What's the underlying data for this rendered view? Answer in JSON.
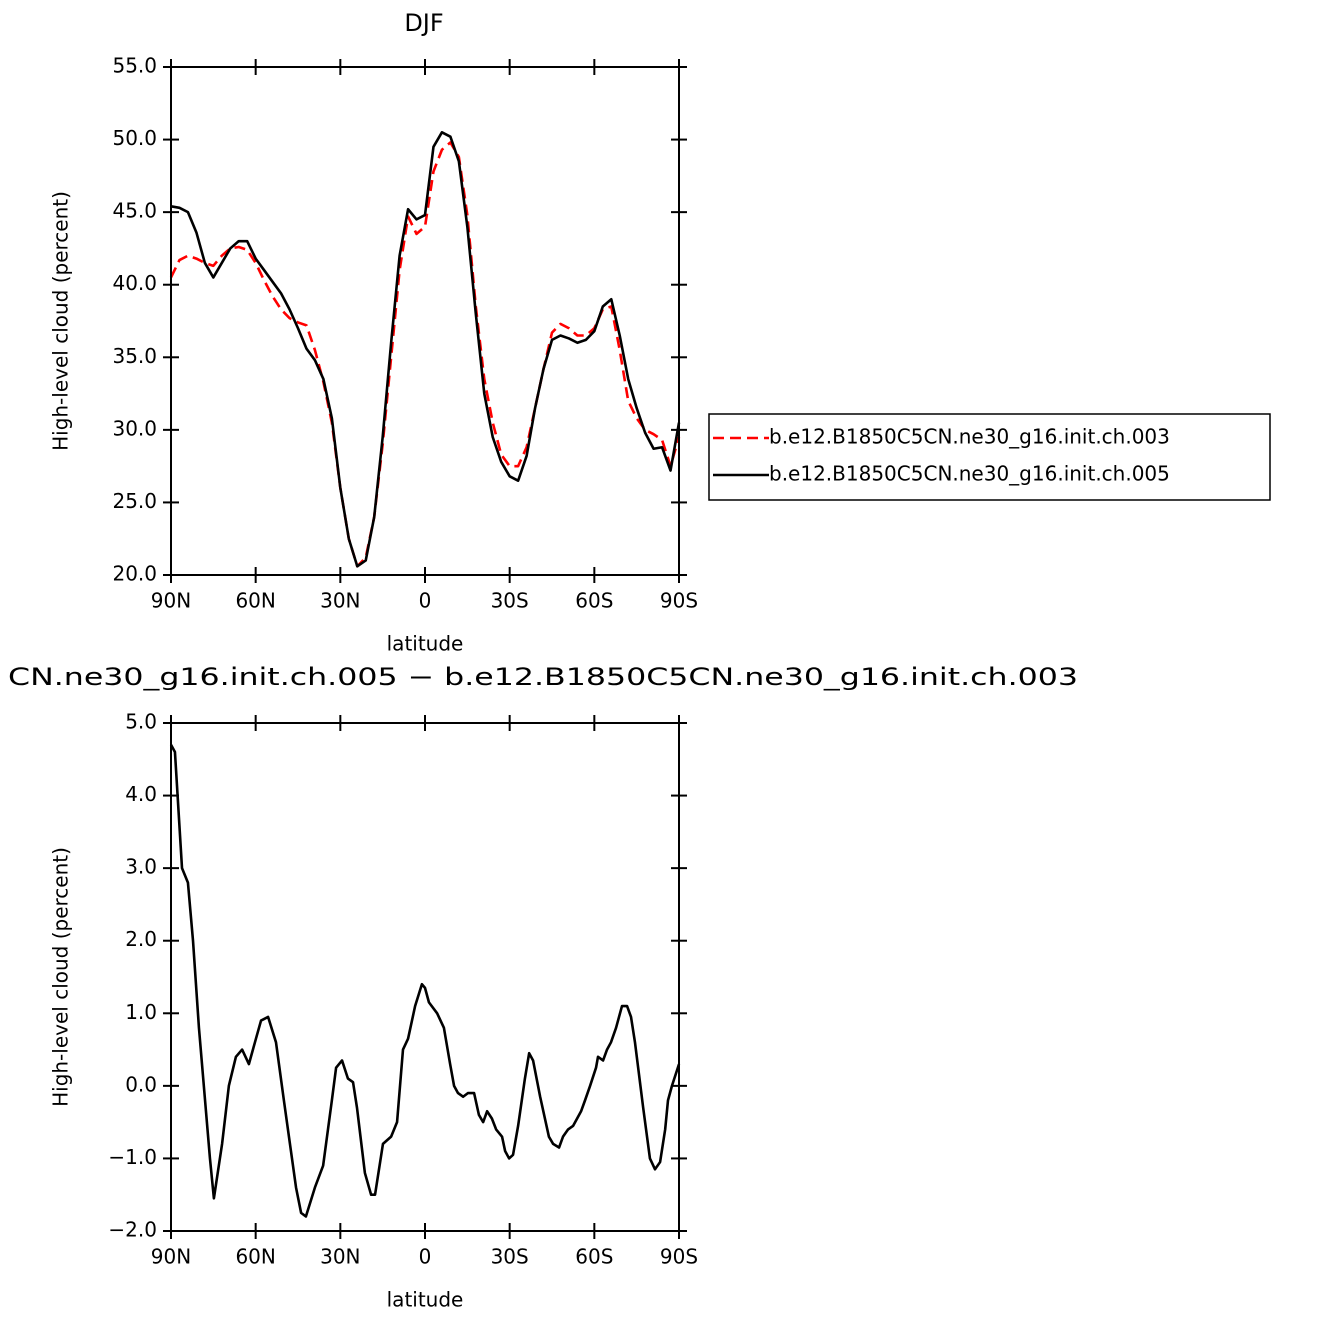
{
  "chart_data": [
    {
      "type": "line",
      "title": "DJF",
      "x_label": "latitude",
      "y_label": "High-level cloud (percent)",
      "x": [
        90,
        87,
        84,
        81,
        78,
        75,
        72,
        69,
        66,
        63,
        60,
        57,
        54,
        51,
        48,
        45,
        42,
        39,
        36,
        33,
        30,
        27,
        24,
        21,
        18,
        15,
        12,
        9,
        6,
        3,
        0,
        -3,
        -6,
        -9,
        -12,
        -15,
        -18,
        -21,
        -24,
        -27,
        -30,
        -33,
        -36,
        -39,
        -42,
        -45,
        -48,
        -51,
        -54,
        -57,
        -60,
        -63,
        -66,
        -69,
        -72,
        -75,
        -78,
        -81,
        -84,
        -87,
        -90
      ],
      "series": [
        {
          "name": "b.e12.B1850C5CN.ne30_g16.init.ch.003",
          "color": "#ff0000",
          "line_style": "dashed",
          "values": [
            40.5,
            41.7,
            42.0,
            41.8,
            41.5,
            41.3,
            42.0,
            42.5,
            42.6,
            42.4,
            41.5,
            40.3,
            39.2,
            38.3,
            37.7,
            37.4,
            37.2,
            35.5,
            33.3,
            30.5,
            26,
            22.5,
            20.6,
            21.2,
            24,
            29,
            35,
            41,
            44.7,
            43.5,
            44,
            47.8,
            49.3,
            49.8,
            48.8,
            44.8,
            38.5,
            33.5,
            30.5,
            28.3,
            27.5,
            27.5,
            28.8,
            31.5,
            34.2,
            36.7,
            37.3,
            37.0,
            36.5,
            36.5,
            37.0,
            38.3,
            38.5,
            35.5,
            32.0,
            30.8,
            30.0,
            29.7,
            29.3,
            27.5,
            29.5
          ]
        },
        {
          "name": "b.e12.B1850C5CN.ne30_g16.init.ch.005",
          "color": "#000000",
          "line_style": "solid",
          "values": [
            45.4,
            45.3,
            45.0,
            43.6,
            41.5,
            40.5,
            41.5,
            42.5,
            43.0,
            43.0,
            41.8,
            41.0,
            40.2,
            39.4,
            38.3,
            37.0,
            35.6,
            34.8,
            33.5,
            30.8,
            26,
            22.5,
            20.6,
            21.0,
            24,
            29.5,
            36,
            42,
            45.2,
            44.5,
            44.8,
            49.5,
            50.5,
            50.2,
            48.5,
            44,
            38,
            32.5,
            29.5,
            27.8,
            26.8,
            26.5,
            28.2,
            31.5,
            34.2,
            36.2,
            36.5,
            36.3,
            36.0,
            36.2,
            36.8,
            38.5,
            39.0,
            36.5,
            33.5,
            31.5,
            29.8,
            28.7,
            28.8,
            27.2,
            30.5
          ]
        }
      ],
      "xlim": [
        90,
        -90
      ],
      "xticks": [
        {
          "value": 90,
          "label": "90N"
        },
        {
          "value": 60,
          "label": "60N"
        },
        {
          "value": 30,
          "label": "30N"
        },
        0,
        {
          "value": -30,
          "label": "30S"
        },
        {
          "value": -60,
          "label": "60S"
        },
        {
          "value": -90,
          "label": "90S"
        }
      ],
      "ylim": [
        20,
        55
      ],
      "yticks": [
        {
          "value": 20,
          "label": "20.0"
        },
        {
          "value": 25,
          "label": "25.0"
        },
        {
          "value": 30,
          "label": "30.0"
        },
        {
          "value": 35,
          "label": "35.0"
        },
        {
          "value": 40,
          "label": "40.0"
        },
        {
          "value": 45,
          "label": "45.0"
        },
        {
          "value": 50,
          "label": "50.0"
        },
        {
          "value": 55,
          "label": "55.0"
        }
      ],
      "grid": false,
      "legend": "right"
    },
    {
      "type": "line",
      "title": "CN.ne30_g16.init.ch.005 − b.e12.B1850C5CN.ne30_g16.init.ch.003",
      "x_label": "latitude",
      "y_label": "High-level cloud (percent)",
      "x": [
        90,
        88.6,
        86.1,
        84,
        82.2,
        80.1,
        76.2,
        74.8,
        71.9,
        69.5,
        67,
        64.8,
        62.4,
        59.9,
        58.1,
        55.6,
        52.8,
        50,
        45.7,
        43.9,
        42.2,
        39,
        36.1,
        33,
        31.5,
        29.4,
        27.3,
        25.5,
        24.1,
        21.3,
        19.1,
        17.7,
        14.9,
        12,
        9.9,
        7.8,
        6,
        3.5,
        1.1,
        0,
        -1.4,
        -4.3,
        -6.7,
        -8.9,
        -10.3,
        -11.7,
        -13.5,
        -15.2,
        -17.4,
        -19.1,
        -20.6,
        -22,
        -23.7,
        -25.2,
        -27.3,
        -28.4,
        -29.8,
        -31.2,
        -33,
        -35.4,
        -36.9,
        -38.3,
        -40.8,
        -43.9,
        -45.4,
        -47.5,
        -48.9,
        -50.7,
        -52.5,
        -55.3,
        -56.7,
        -58.5,
        -60.6,
        -61.3,
        -63.1,
        -64.5,
        -65.9,
        -67.7,
        -69.8,
        -71.6,
        -73,
        -74.4,
        -77.3,
        -79.7,
        -81.5,
        -83.3,
        -85.1,
        -86.1,
        -87.5,
        -90
      ],
      "series": [
        {
          "color": "#000000",
          "line_style": "solid",
          "values": [
            4.7,
            4.6,
            3.0,
            2.8,
            2.0,
            0.8,
            -1.0,
            -1.55,
            -0.8,
            0.0,
            0.4,
            0.5,
            0.3,
            0.65,
            0.9,
            0.95,
            0.6,
            -0.2,
            -1.4,
            -1.75,
            -1.8,
            -1.4,
            -1.1,
            -0.2,
            0.25,
            0.35,
            0.1,
            0.05,
            -0.3,
            -1.2,
            -1.5,
            -1.5,
            -0.8,
            -0.7,
            -0.5,
            0.5,
            0.65,
            1.1,
            1.4,
            1.35,
            1.15,
            1.0,
            0.8,
            0.3,
            0.0,
            -0.1,
            -0.15,
            -0.1,
            -0.1,
            -0.4,
            -0.5,
            -0.35,
            -0.45,
            -0.6,
            -0.7,
            -0.9,
            -1.0,
            -0.95,
            -0.55,
            0.1,
            0.45,
            0.35,
            -0.15,
            -0.7,
            -0.8,
            -0.85,
            -0.7,
            -0.6,
            -0.55,
            -0.35,
            -0.2,
            0.0,
            0.25,
            0.4,
            0.35,
            0.5,
            0.6,
            0.8,
            1.1,
            1.1,
            0.95,
            0.6,
            -0.3,
            -1.0,
            -1.15,
            -1.05,
            -0.6,
            -0.2,
            0.0,
            0.3
          ]
        }
      ],
      "xlim": [
        90,
        -90
      ],
      "xticks": [
        {
          "value": 90,
          "label": "90N"
        },
        {
          "value": 60,
          "label": "60N"
        },
        {
          "value": 30,
          "label": "30N"
        },
        0,
        {
          "value": -30,
          "label": "30S"
        },
        {
          "value": -60,
          "label": "60S"
        },
        {
          "value": -90,
          "label": "90S"
        }
      ],
      "ylim": [
        -2,
        5
      ],
      "yticks": [
        {
          "value": -2,
          "label": "−2.0"
        },
        {
          "value": -1,
          "label": "−1.0"
        },
        {
          "value": 0,
          "label": "0.0"
        },
        {
          "value": 1,
          "label": "1.0"
        },
        {
          "value": 2,
          "label": "2.0"
        },
        {
          "value": 3,
          "label": "3.0"
        },
        {
          "value": 4,
          "label": "4.0"
        },
        {
          "value": 5,
          "label": "5.0"
        }
      ],
      "grid": false
    }
  ]
}
